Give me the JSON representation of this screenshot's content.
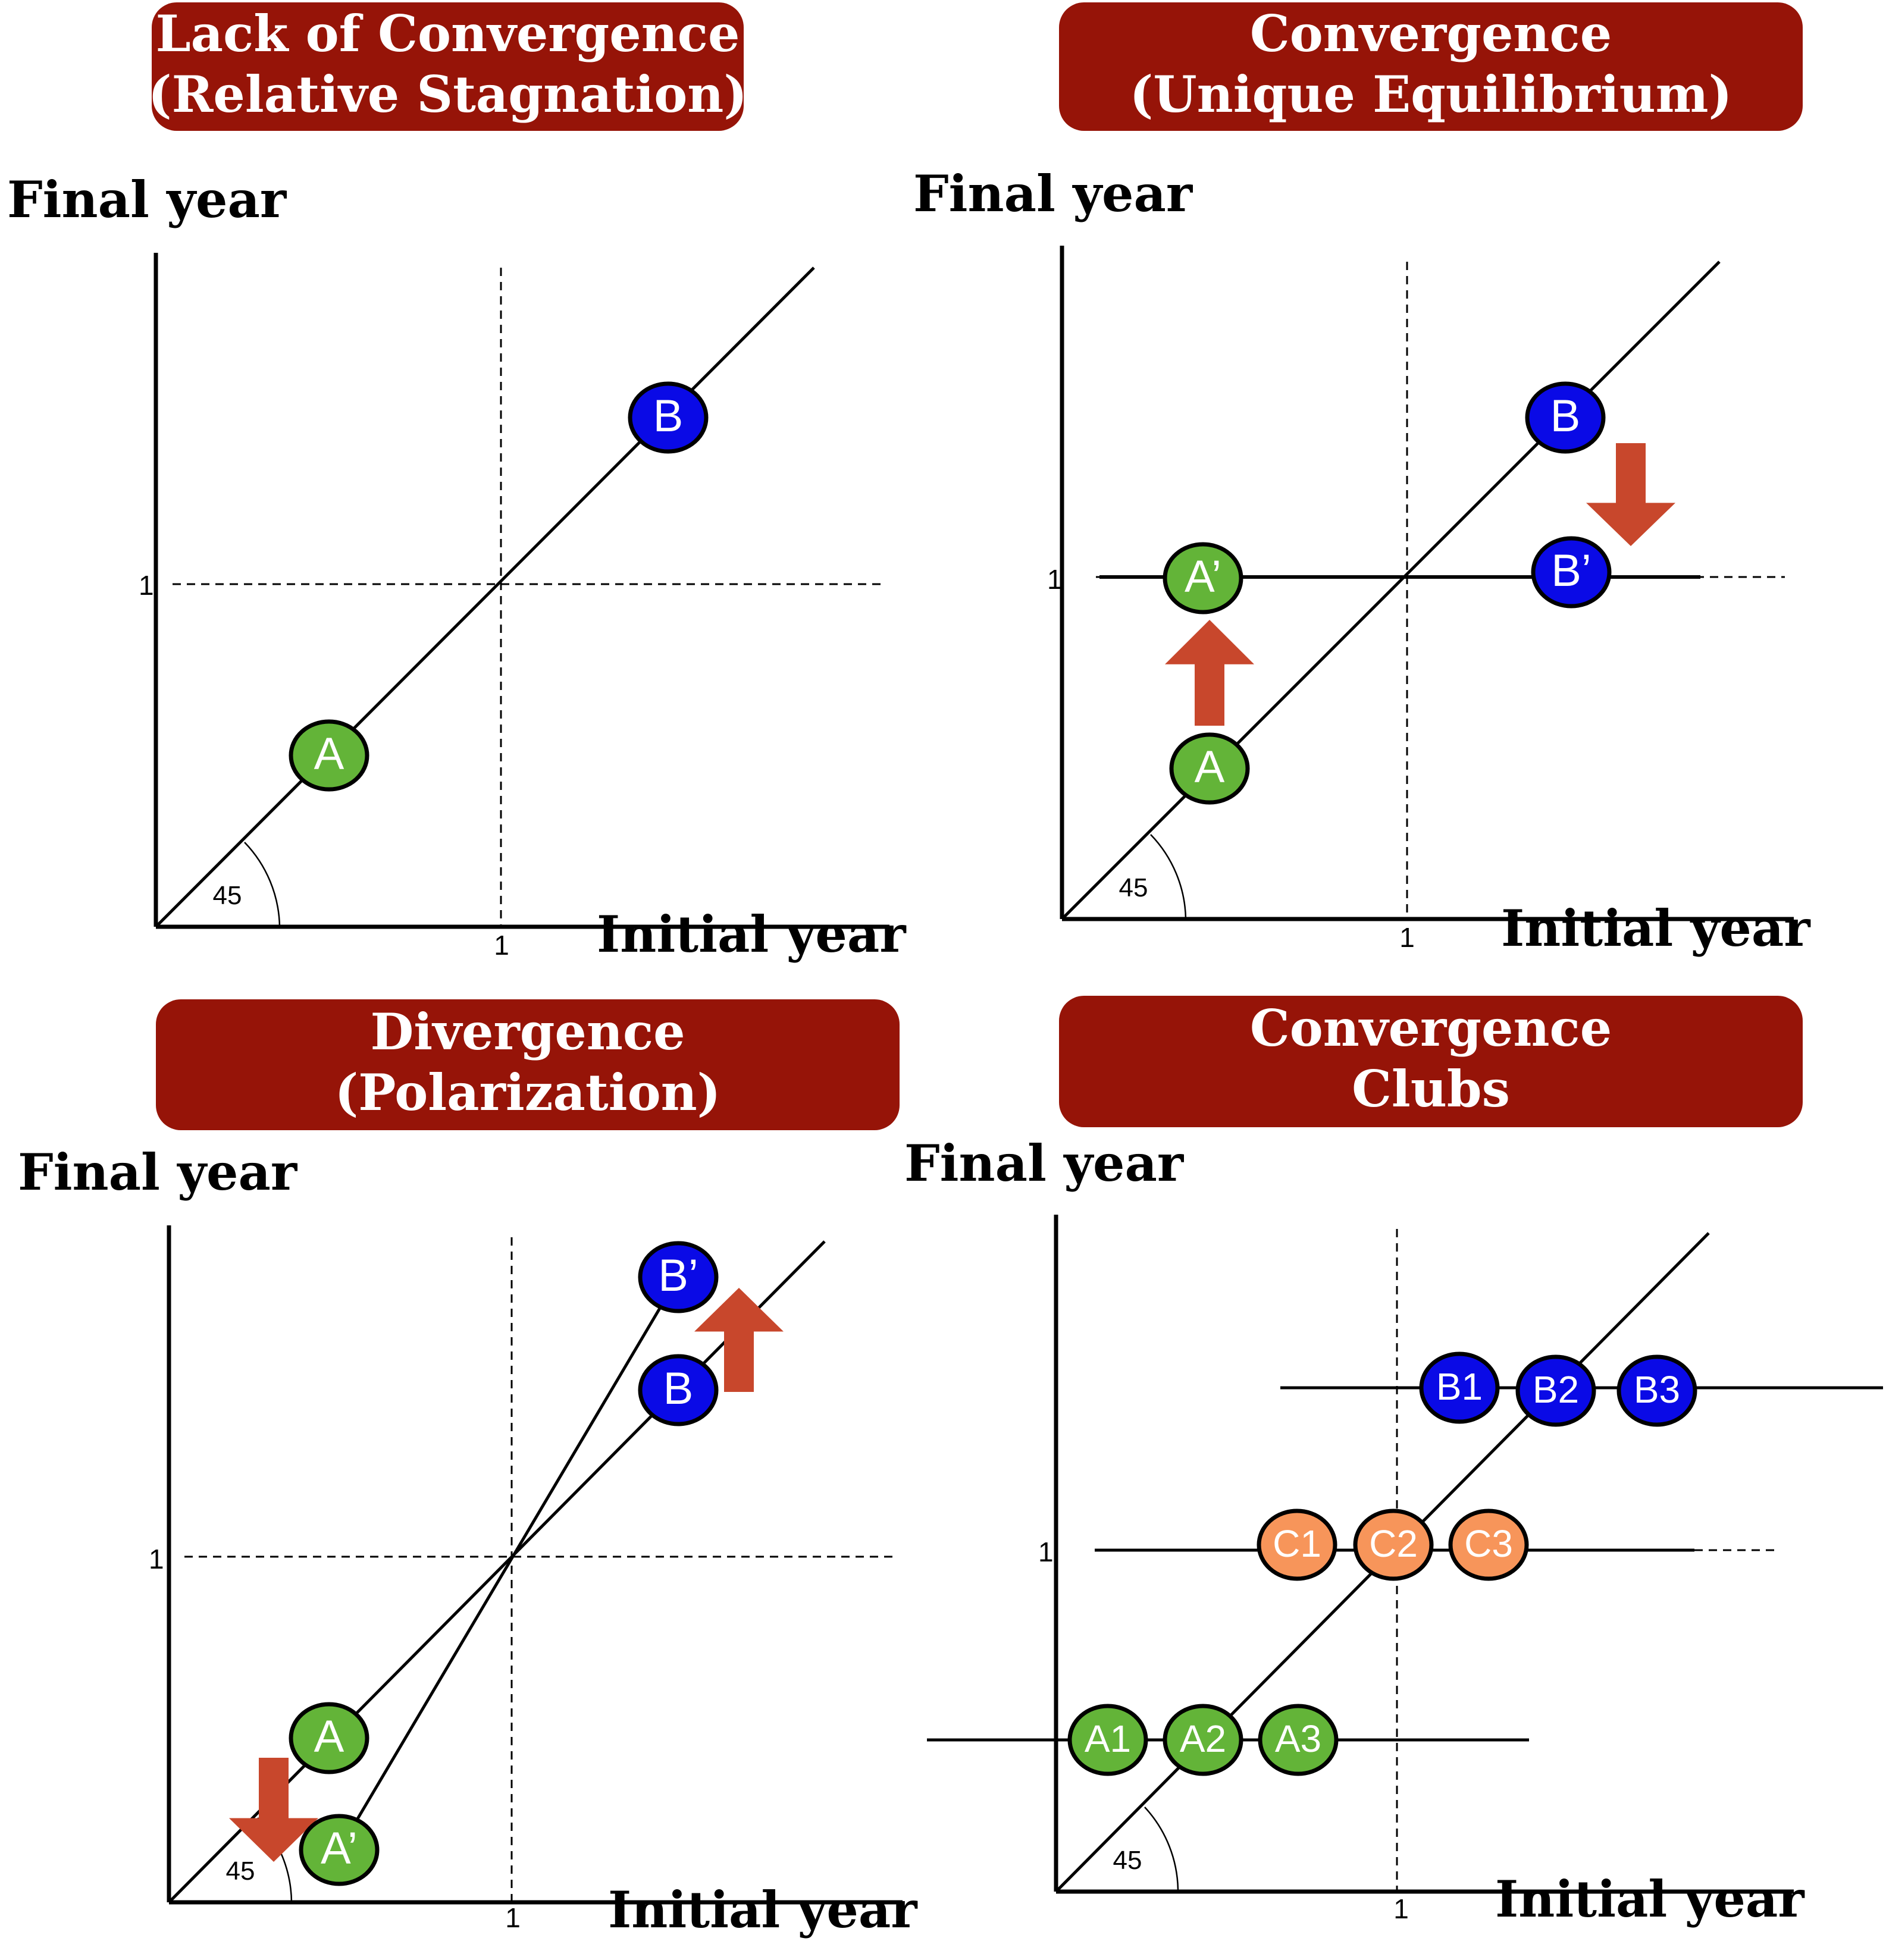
{
  "colors": {
    "title_bg": "#961408",
    "green": "#63b438",
    "blue": "#0a0ae6",
    "orange": "#f7955a",
    "arrow": "#c8472c",
    "line": "#000000"
  },
  "panels": [
    {
      "id": "lack",
      "title": [
        "Lack of Convergence",
        "(Relative Stagnation)"
      ],
      "ylabel": "Final year",
      "xlabel": "Initial year",
      "tick": "1",
      "angle": "45",
      "nodes": [
        {
          "label": "A",
          "color": "green"
        },
        {
          "label": "B",
          "color": "blue"
        }
      ]
    },
    {
      "id": "convergence",
      "title": [
        "Convergence",
        "(Unique Equilibrium)"
      ],
      "ylabel": "Final year",
      "xlabel": "Initial year",
      "tick": "1",
      "angle": "45",
      "nodes": [
        {
          "label": "A",
          "color": "green"
        },
        {
          "label": "A’",
          "color": "green"
        },
        {
          "label": "B",
          "color": "blue"
        },
        {
          "label": "B’",
          "color": "blue"
        }
      ]
    },
    {
      "id": "divergence",
      "title": [
        "Divergence",
        "(Polarization)"
      ],
      "ylabel": "Final year",
      "xlabel": "Initial year",
      "tick": "1",
      "angle": "45",
      "nodes": [
        {
          "label": "A",
          "color": "green"
        },
        {
          "label": "A’",
          "color": "green"
        },
        {
          "label": "B",
          "color": "blue"
        },
        {
          "label": "B’",
          "color": "blue"
        }
      ]
    },
    {
      "id": "clubs",
      "title": [
        "Convergence",
        "Clubs"
      ],
      "ylabel": "Final year",
      "xlabel": "Initial year",
      "tick": "1",
      "angle": "45",
      "nodes": [
        {
          "label": "A1",
          "color": "green"
        },
        {
          "label": "A2",
          "color": "green"
        },
        {
          "label": "A3",
          "color": "green"
        },
        {
          "label": "C1",
          "color": "orange"
        },
        {
          "label": "C2",
          "color": "orange"
        },
        {
          "label": "C3",
          "color": "orange"
        },
        {
          "label": "B1",
          "color": "blue"
        },
        {
          "label": "B2",
          "color": "blue"
        },
        {
          "label": "B3",
          "color": "blue"
        }
      ]
    }
  ]
}
